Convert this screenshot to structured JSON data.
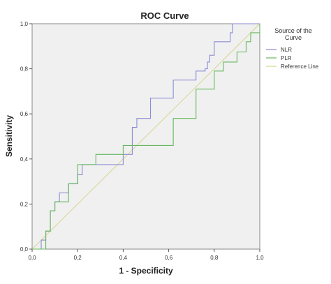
{
  "chart_data": {
    "type": "line",
    "title": "ROC Curve",
    "xlabel": "1 - Specificity",
    "ylabel": "Sensitivity",
    "xlim": [
      0,
      1
    ],
    "ylim": [
      0,
      1
    ],
    "x_ticks": [
      "0,0",
      "0,2",
      "0,4",
      "0,6",
      "0,8",
      "1,0"
    ],
    "y_ticks": [
      "0,0",
      "0,2",
      "0,4",
      "0,6",
      "0,8",
      "1,0"
    ],
    "grid": false,
    "legend_position": "right",
    "legend_title": [
      "Source of the",
      "Curve"
    ],
    "colors": {
      "plot_background": "#f0f0f0",
      "NLR": "#8a8ad6",
      "PLR": "#66b85e",
      "Reference Line": "#d4d48a"
    },
    "series": [
      {
        "name": "NLR",
        "x": [
          0,
          0.04,
          0.04,
          0.06,
          0.06,
          0.08,
          0.08,
          0.1,
          0.1,
          0.12,
          0.12,
          0.16,
          0.16,
          0.2,
          0.2,
          0.22,
          0.22,
          0.26,
          0.26,
          0.4,
          0.4,
          0.44,
          0.44,
          0.46,
          0.46,
          0.52,
          0.52,
          0.6,
          0.6,
          0.62,
          0.62,
          0.66,
          0.66,
          0.72,
          0.72,
          0.76,
          0.76,
          0.77,
          0.77,
          0.78,
          0.78,
          0.8,
          0.8,
          0.87,
          0.87,
          0.88,
          0.88,
          1.0
        ],
        "y": [
          0,
          0,
          0.04,
          0.04,
          0.08,
          0.08,
          0.17,
          0.17,
          0.21,
          0.21,
          0.25,
          0.25,
          0.29,
          0.29,
          0.33,
          0.33,
          0.375,
          0.375,
          0.375,
          0.375,
          0.42,
          0.42,
          0.54,
          0.54,
          0.58,
          0.58,
          0.67,
          0.67,
          0.67,
          0.67,
          0.75,
          0.75,
          0.75,
          0.75,
          0.79,
          0.79,
          0.8,
          0.8,
          0.83,
          0.83,
          0.86,
          0.86,
          0.92,
          0.92,
          0.96,
          0.96,
          1.0,
          1.0
        ]
      },
      {
        "name": "PLR",
        "x": [
          0,
          0.06,
          0.06,
          0.08,
          0.08,
          0.1,
          0.1,
          0.16,
          0.16,
          0.2,
          0.2,
          0.28,
          0.28,
          0.4,
          0.4,
          0.52,
          0.52,
          0.62,
          0.62,
          0.66,
          0.66,
          0.72,
          0.72,
          0.76,
          0.76,
          0.8,
          0.8,
          0.84,
          0.84,
          0.9,
          0.9,
          0.94,
          0.94,
          0.96,
          0.96,
          1.0,
          1.0
        ],
        "y": [
          0,
          0,
          0.08,
          0.08,
          0.17,
          0.17,
          0.21,
          0.21,
          0.29,
          0.29,
          0.375,
          0.375,
          0.42,
          0.42,
          0.46,
          0.46,
          0.46,
          0.46,
          0.58,
          0.58,
          0.58,
          0.58,
          0.71,
          0.71,
          0.71,
          0.71,
          0.79,
          0.79,
          0.83,
          0.83,
          0.875,
          0.875,
          0.92,
          0.92,
          0.96,
          0.96,
          1.0
        ]
      },
      {
        "name": "Reference Line",
        "x": [
          0,
          1
        ],
        "y": [
          0,
          1
        ]
      }
    ]
  }
}
